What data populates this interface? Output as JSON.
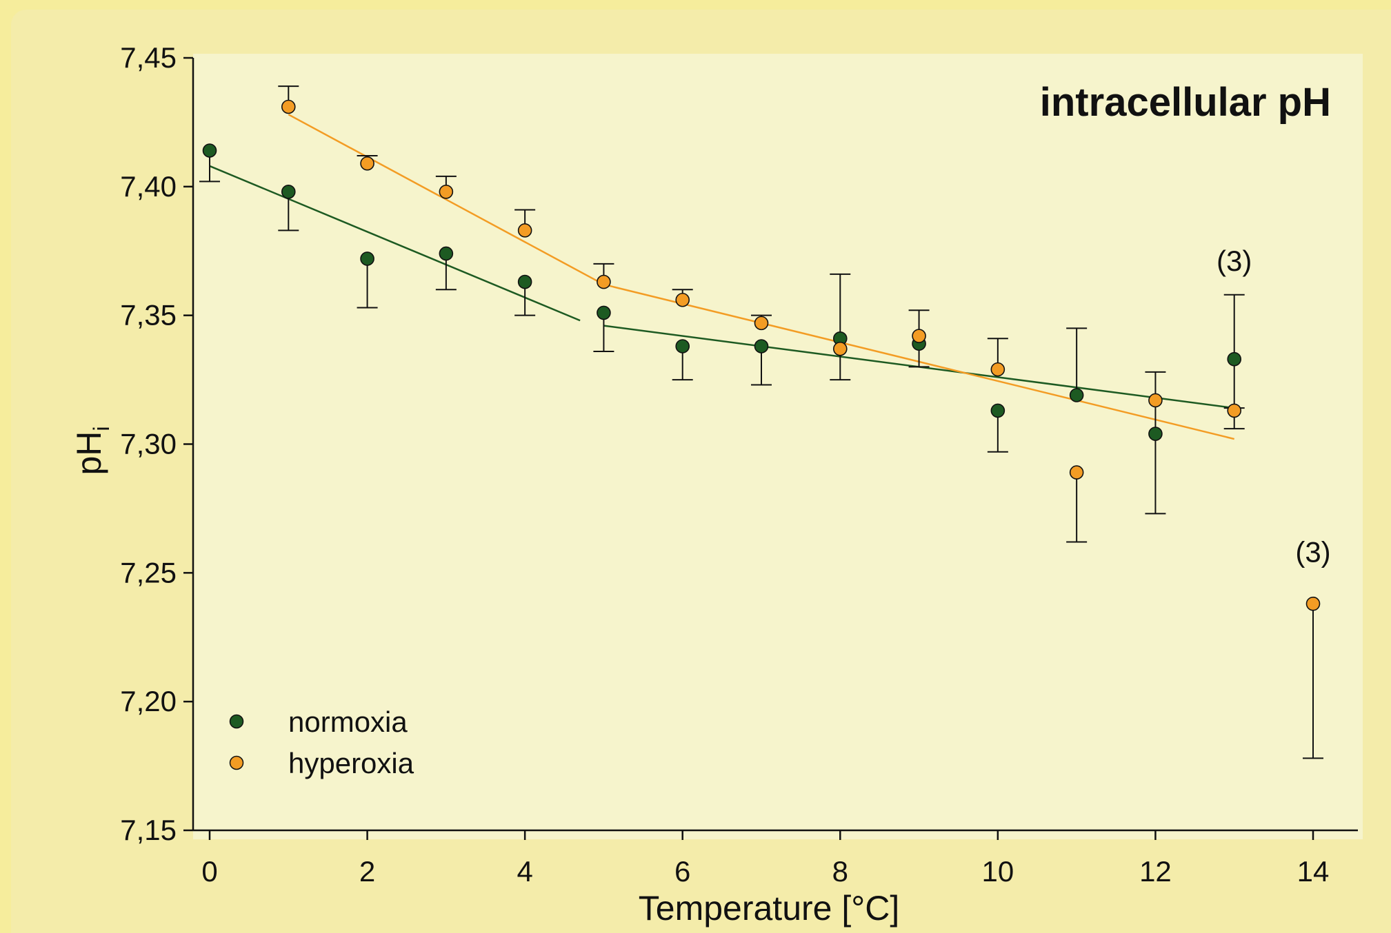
{
  "chart_data": {
    "type": "scatter",
    "title": "intracellular pH",
    "xlabel": "Temperature [°C]",
    "ylabel": "pH",
    "ylabel_subscript": "i",
    "xlim": [
      0,
      14
    ],
    "ylim": [
      7.15,
      7.45
    ],
    "x_ticks": [
      "0",
      "2",
      "4",
      "6",
      "8",
      "10",
      "12",
      "14"
    ],
    "y_ticks": [
      "7,15",
      "7,20",
      "7,25",
      "7,30",
      "7,35",
      "7,40",
      "7,45"
    ],
    "legend_position": "bottom-left",
    "grid": false,
    "series": [
      {
        "name": "normoxia",
        "color": "#1d5a22",
        "x": [
          0,
          1,
          2,
          3,
          4,
          5,
          6,
          7,
          8,
          9,
          10,
          11,
          12,
          13
        ],
        "y": [
          7.414,
          7.398,
          7.372,
          7.374,
          7.363,
          7.351,
          7.338,
          7.338,
          7.341,
          7.339,
          7.313,
          7.319,
          7.304,
          7.333
        ],
        "err_low": [
          7.402,
          7.383,
          7.353,
          7.36,
          7.35,
          7.336,
          7.325,
          7.323,
          7.325,
          7.33,
          7.297,
          null,
          7.273,
          7.314
        ],
        "err_high": [
          null,
          null,
          null,
          null,
          null,
          null,
          null,
          null,
          7.366,
          null,
          null,
          7.345,
          7.328,
          7.358
        ],
        "fit": [
          {
            "x": [
              0,
              4.7
            ],
            "y": [
              7.408,
              7.348
            ]
          },
          {
            "x": [
              5,
              13
            ],
            "y": [
              7.346,
              7.314
            ]
          }
        ]
      },
      {
        "name": "hyperoxia",
        "color": "#f39c24",
        "x": [
          1,
          2,
          3,
          4,
          5,
          6,
          7,
          8,
          9,
          10,
          11,
          12,
          13,
          14
        ],
        "y": [
          7.431,
          7.409,
          7.398,
          7.383,
          7.363,
          7.356,
          7.347,
          7.337,
          7.342,
          7.329,
          7.289,
          7.317,
          7.313,
          7.238
        ],
        "err_low": [
          null,
          null,
          null,
          null,
          null,
          null,
          null,
          null,
          null,
          null,
          7.262,
          null,
          7.306,
          7.178
        ],
        "err_high": [
          7.439,
          7.412,
          7.404,
          7.391,
          7.37,
          7.36,
          7.35,
          null,
          7.352,
          7.341,
          null,
          null,
          null,
          null
        ],
        "fit": [
          {
            "x": [
              1,
              5
            ],
            "y": [
              7.428,
              7.362
            ]
          },
          {
            "x": [
              5,
              13
            ],
            "y": [
              7.362,
              7.302
            ]
          }
        ]
      }
    ],
    "annotations": [
      {
        "text": "(3)",
        "x": 13,
        "y": 7.371
      },
      {
        "text": "(3)",
        "x": 14,
        "y": 7.258
      }
    ]
  }
}
